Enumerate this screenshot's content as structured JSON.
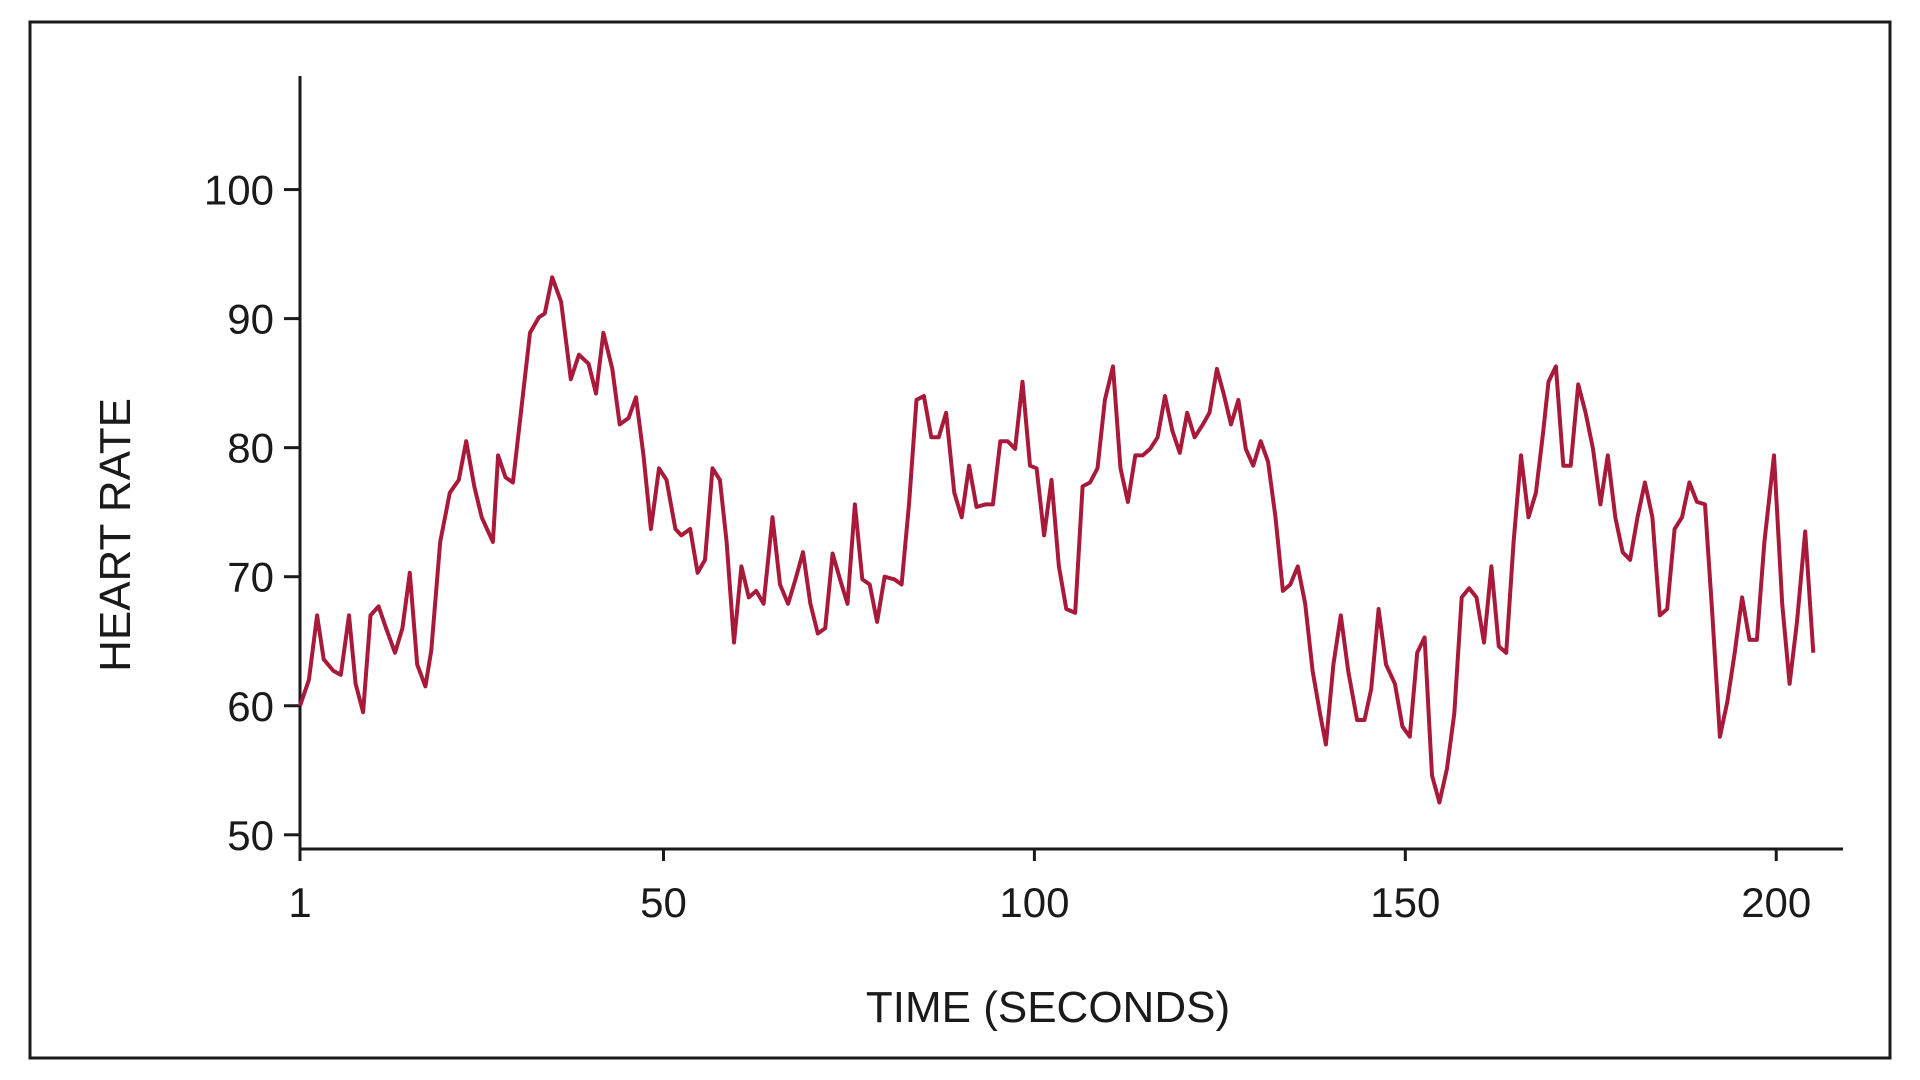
{
  "chart_data": {
    "type": "line",
    "x_label": "TIME (SECONDS)",
    "y_label": "HEART RATE",
    "color": "#a8193a",
    "x": [
      1,
      2.2,
      3.3,
      4.2,
      5.5,
      6.5,
      7.6,
      8.5,
      9.5,
      10.5,
      11.6,
      12.6,
      13.8,
      14.8,
      15.8,
      16.8,
      17.9,
      18.7,
      19.9,
      21.2,
      22.4,
      23.4,
      24.5,
      25.5,
      27,
      27.7,
      28.7,
      29.7,
      30.7,
      32,
      33.2,
      34,
      35,
      36.2,
      37.5,
      38.6,
      39.9,
      40.9,
      41.9,
      43.1,
      44.1,
      45.3,
      46.3,
      47.3,
      48.3,
      49.4,
      50.4,
      51.6,
      52.4,
      53.6,
      54.6,
      55.6,
      56.6,
      57.6,
      58.5,
      59.5,
      60.5,
      61.5,
      62.5,
      63.5,
      64.7,
      65.7,
      66.8,
      67.8,
      68.8,
      69.8,
      70.8,
      71.8,
      72.8,
      73.8,
      74.8,
      75.8,
      76.8,
      77.8,
      78.8,
      79.8,
      81.1,
      82.1,
      83.1,
      84.1,
      85.1,
      86.1,
      87.1,
      88.1,
      89.2,
      90.2,
      91.2,
      92.2,
      93.4,
      94.4,
      95.4,
      96.4,
      97.4,
      98.4,
      99.4,
      100.3,
      101.3,
      102.3,
      103.3,
      104.3,
      105.5,
      106.5,
      107.5,
      108.5,
      109.5,
      110.6,
      111.6,
      112.6,
      113.6,
      114.6,
      115.6,
      116.6,
      117.6,
      118.6,
      119.6,
      120.6,
      121.6,
      122.6,
      123.6,
      124.6,
      125.5,
      126.5,
      127.5,
      128.5,
      129.5,
      130.5,
      131.5,
      132.5,
      133.5,
      134.5,
      135.5,
      136.5,
      137.5,
      138.5,
      139.3,
      140.3,
      141.3,
      142.3,
      143.5,
      144.5,
      145.4,
      146.4,
      147.4,
      148.6,
      149.6,
      150.6,
      151.6,
      152.6,
      153.6,
      154.6,
      155.6,
      156.6,
      157.6,
      158.6,
      159.6,
      160.6,
      161.6,
      162.6,
      163.6,
      164.6,
      165.6,
      166.6,
      167.6,
      168.6,
      169.3,
      170.3,
      171.3,
      172.3,
      173.3,
      174.3,
      175.3,
      176.3,
      177.3,
      178.3,
      179.3,
      180.3,
      181.3,
      182.3,
      183.3,
      184.3,
      185.3,
      186.3,
      187.3,
      188.3,
      189.3,
      190.4,
      191.4,
      192.4,
      193.4,
      194.4,
      195.4,
      196.4,
      197.4,
      198.4,
      199.7,
      200.8,
      201.8,
      202.8,
      203.9,
      205
    ],
    "values": [
      60,
      62,
      67,
      63.6,
      62.7,
      62.4,
      67,
      61.7,
      59.5,
      67,
      67.7,
      66,
      64.1,
      66,
      70.3,
      63.2,
      61.5,
      64.3,
      72.7,
      76.5,
      77.5,
      80.5,
      77,
      74.6,
      72.7,
      79.4,
      77.7,
      77.3,
      82.3,
      88.9,
      90.1,
      90.4,
      93.2,
      91.3,
      85.3,
      87.2,
      86.5,
      84.2,
      88.9,
      86.1,
      81.8,
      82.3,
      83.9,
      79.4,
      73.7,
      78.4,
      77.5,
      73.7,
      73.2,
      73.7,
      70.3,
      71.3,
      78.4,
      77.5,
      72.7,
      64.9,
      70.8,
      68.4,
      68.9,
      67.9,
      74.6,
      69.4,
      67.9,
      69.8,
      71.9,
      67.9,
      65.6,
      66,
      71.8,
      69.8,
      67.9,
      75.6,
      69.8,
      69.4,
      66.5,
      70,
      69.8,
      69.4,
      75.6,
      83.7,
      84,
      80.8,
      80.8,
      82.7,
      76.5,
      74.6,
      78.6,
      75.4,
      75.6,
      75.6,
      80.5,
      80.5,
      79.9,
      85.1,
      78.6,
      78.4,
      73.2,
      77.5,
      70.8,
      67.5,
      67.2,
      77,
      77.3,
      78.4,
      83.7,
      86.3,
      78.4,
      75.8,
      79.4,
      79.4,
      79.9,
      80.8,
      84,
      81.3,
      79.6,
      82.7,
      80.8,
      81.7,
      82.7,
      86.1,
      84.2,
      81.8,
      83.7,
      79.9,
      78.6,
      80.5,
      78.9,
      74.6,
      68.9,
      69.4,
      70.8,
      67.9,
      62.7,
      59.4,
      57,
      63.2,
      67,
      62.7,
      58.9,
      58.9,
      61.3,
      67.5,
      63.2,
      61.7,
      58.4,
      57.6,
      64.1,
      65.3,
      54.6,
      52.5,
      55.1,
      59.4,
      68.4,
      69.1,
      68.4,
      64.9,
      70.8,
      64.6,
      64.1,
      72.7,
      79.4,
      74.6,
      76.5,
      81.3,
      85.1,
      86.3,
      78.6,
      78.6,
      84.9,
      82.7,
      79.9,
      75.6,
      79.4,
      74.6,
      71.9,
      71.3,
      74.6,
      77.3,
      74.6,
      67,
      67.5,
      73.7,
      74.6,
      77.3,
      75.8,
      75.6,
      67,
      57.6,
      60.3,
      64.1,
      68.4,
      65.1,
      65.1,
      72.7,
      79.4,
      67.9,
      61.7,
      66.5,
      73.5,
      64.1
    ],
    "xlim": [
      1,
      209
    ],
    "xticks": [
      1,
      50,
      100,
      150,
      200
    ],
    "ylim": [
      48.9,
      108.8
    ],
    "yticks": [
      50,
      60,
      70,
      80,
      90,
      100
    ]
  }
}
